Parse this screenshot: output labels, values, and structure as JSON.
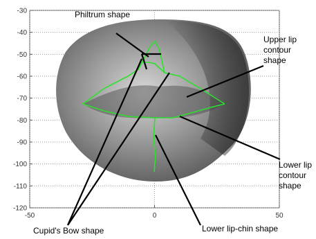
{
  "chart_data": {
    "type": "image",
    "xlim": [
      -50,
      50
    ],
    "ylim": [
      -120,
      -30
    ],
    "xticks": [
      -50,
      0,
      50
    ],
    "yticks": [
      -120,
      -110,
      -100,
      -90,
      -80,
      -70,
      -60,
      -50,
      -40,
      -30
    ],
    "grid": true,
    "annotations": [
      "Philtrum shape",
      "Upper lip contour shape",
      "Lower lip contour shape",
      "Cupid's Bow shape",
      "Lower lip-chin shape"
    ]
  }
}
